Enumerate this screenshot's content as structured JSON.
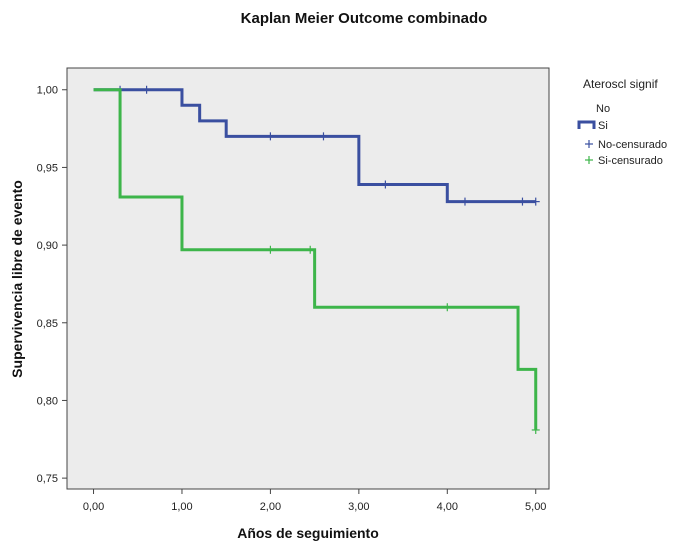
{
  "chart_data": {
    "type": "line",
    "step": true,
    "title": "Kaplan Meier Outcome combinado",
    "xlabel": "Años de seguimiento",
    "ylabel": "Supervivencia libre de evento",
    "xlim": [
      -0.3,
      5.15
    ],
    "ylim": [
      0.743,
      1.014
    ],
    "x_ticks": [
      0,
      1,
      2,
      3,
      4,
      5
    ],
    "x_tick_labels": [
      "0,00",
      "1,00",
      "2,00",
      "3,00",
      "4,00",
      "5,00"
    ],
    "y_ticks": [
      0.75,
      0.8,
      0.85,
      0.9,
      0.95,
      1.0
    ],
    "y_tick_labels": [
      "0,75",
      "0,80",
      "0,85",
      "0,90",
      "0,95",
      "1,00"
    ],
    "grid": false,
    "background": "#ececec",
    "legend": {
      "title": "Ateroscl signif",
      "position": "right",
      "entries": [
        "No",
        "Si",
        "No-censurado",
        "Si-censurado"
      ]
    },
    "series": [
      {
        "name": "No",
        "color": "#3a4fa0",
        "x": [
          0,
          1.0,
          1.2,
          1.5,
          3.0,
          4.0,
          5.0
        ],
        "y": [
          1.0,
          0.99,
          0.98,
          0.97,
          0.939,
          0.928,
          0.928
        ],
        "censored": [
          {
            "x": 0.3,
            "y": 1.0
          },
          {
            "x": 0.6,
            "y": 1.0
          },
          {
            "x": 2.0,
            "y": 0.97
          },
          {
            "x": 2.6,
            "y": 0.97
          },
          {
            "x": 3.3,
            "y": 0.939
          },
          {
            "x": 4.2,
            "y": 0.928
          },
          {
            "x": 4.85,
            "y": 0.928
          },
          {
            "x": 5.0,
            "y": 0.928
          }
        ]
      },
      {
        "name": "Si",
        "color": "#3db54a",
        "x": [
          0,
          0.3,
          1.0,
          2.5,
          4.8,
          5.0
        ],
        "y": [
          1.0,
          0.931,
          0.897,
          0.86,
          0.82,
          0.781
        ],
        "censored": [
          {
            "x": 2.0,
            "y": 0.897
          },
          {
            "x": 2.45,
            "y": 0.897
          },
          {
            "x": 4.0,
            "y": 0.86
          },
          {
            "x": 5.0,
            "y": 0.781
          }
        ]
      }
    ]
  }
}
